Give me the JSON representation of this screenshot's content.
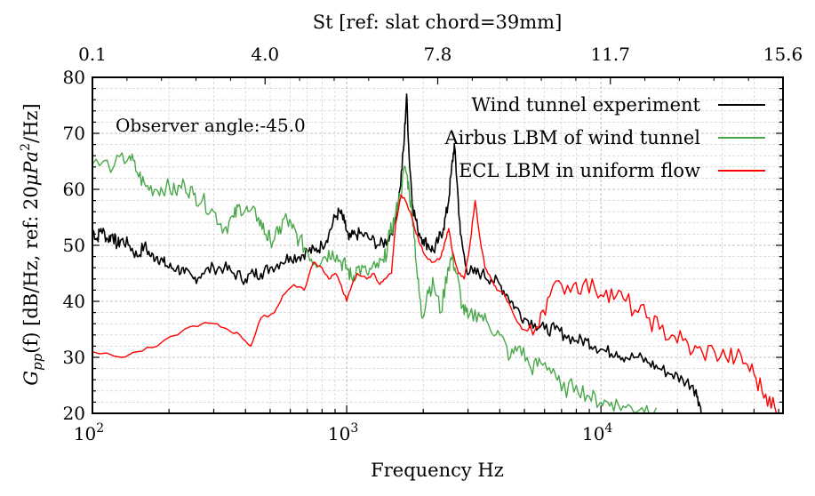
{
  "chart_data": {
    "type": "line",
    "xlabel": "Frequency Hz",
    "ylabel": "G_pp(f) [dB/Hz, ref: 20μPa²/Hz]",
    "ylabel_parts": {
      "g": "G",
      "sub": "pp",
      "fn": "(f) [dB/Hz, ref: 20",
      "mu": "μ",
      "pa": "Pa",
      "sup": "2",
      "end": "/Hz]"
    },
    "x_scale": "log",
    "xlim": [
      100,
      52000
    ],
    "ylim": [
      20,
      80
    ],
    "x_ticks": [
      {
        "value": 100,
        "base": "10",
        "exp": "2"
      },
      {
        "value": 1000,
        "base": "10",
        "exp": "3"
      },
      {
        "value": 10000,
        "base": "10",
        "exp": "4"
      }
    ],
    "y_ticks": [
      "20",
      "30",
      "40",
      "50",
      "60",
      "70",
      "80"
    ],
    "top_axis": {
      "label": "St [ref: slat chord=39mm]",
      "ticks": [
        "0.1",
        "4.0",
        "7.8",
        "11.7",
        "15.6"
      ]
    },
    "grid": true,
    "legend_position": "top-right",
    "annotation": "Observer angle:-45.0",
    "series": [
      {
        "name": "Wind tunnel experiment",
        "color": "#000000",
        "points": [
          [
            100,
            53
          ],
          [
            104,
            51
          ],
          [
            108,
            53
          ],
          [
            115,
            51
          ],
          [
            120,
            52
          ],
          [
            125,
            50
          ],
          [
            130,
            51
          ],
          [
            140,
            50
          ],
          [
            150,
            48
          ],
          [
            160,
            50
          ],
          [
            170,
            48
          ],
          [
            180,
            48
          ],
          [
            190,
            47
          ],
          [
            200,
            46
          ],
          [
            215,
            46
          ],
          [
            230,
            45
          ],
          [
            250,
            44
          ],
          [
            270,
            45
          ],
          [
            300,
            46
          ],
          [
            330,
            46
          ],
          [
            360,
            45
          ],
          [
            400,
            44
          ],
          [
            430,
            45
          ],
          [
            460,
            45
          ],
          [
            500,
            46
          ],
          [
            550,
            47
          ],
          [
            600,
            48
          ],
          [
            650,
            48
          ],
          [
            700,
            49
          ],
          [
            750,
            49
          ],
          [
            800,
            50
          ],
          [
            850,
            52
          ],
          [
            900,
            55
          ],
          [
            940,
            56
          ],
          [
            980,
            54
          ],
          [
            1020,
            51
          ],
          [
            1080,
            52
          ],
          [
            1150,
            52
          ],
          [
            1250,
            51
          ],
          [
            1350,
            50
          ],
          [
            1450,
            51
          ],
          [
            1550,
            54
          ],
          [
            1620,
            60
          ],
          [
            1680,
            68
          ],
          [
            1720,
            77
          ],
          [
            1760,
            66
          ],
          [
            1820,
            57
          ],
          [
            1900,
            53
          ],
          [
            2000,
            51
          ],
          [
            2100,
            50
          ],
          [
            2200,
            49
          ],
          [
            2300,
            51
          ],
          [
            2400,
            53
          ],
          [
            2500,
            57
          ],
          [
            2580,
            63
          ],
          [
            2650,
            68
          ],
          [
            2720,
            61
          ],
          [
            2800,
            52
          ],
          [
            2950,
            46
          ],
          [
            3150,
            45
          ],
          [
            3400,
            45
          ],
          [
            3700,
            44
          ],
          [
            4000,
            43
          ],
          [
            4300,
            41
          ],
          [
            4600,
            39
          ],
          [
            5000,
            37
          ],
          [
            5500,
            36
          ],
          [
            6000,
            35
          ],
          [
            6600,
            35
          ],
          [
            7200,
            34
          ],
          [
            8000,
            33
          ],
          [
            8800,
            33
          ],
          [
            9500,
            32
          ],
          [
            10500,
            31
          ],
          [
            11500,
            31
          ],
          [
            12500,
            30
          ],
          [
            14000,
            30
          ],
          [
            15500,
            29
          ],
          [
            17000,
            28
          ],
          [
            19000,
            27
          ],
          [
            21000,
            26
          ],
          [
            23000,
            25
          ],
          [
            24000,
            23
          ],
          [
            25000,
            20
          ]
        ]
      },
      {
        "name": "Airbus LBM of wind tunnel",
        "color": "#4aa84a",
        "points": [
          [
            100,
            64.5
          ],
          [
            122,
            64.3
          ],
          [
            140,
            66
          ],
          [
            150,
            63
          ],
          [
            162,
            60.5
          ],
          [
            178,
            60
          ],
          [
            195,
            60.5
          ],
          [
            212,
            59.5
          ],
          [
            230,
            61
          ],
          [
            250,
            59
          ],
          [
            270,
            58
          ],
          [
            300,
            56
          ],
          [
            330,
            53
          ],
          [
            360,
            55
          ],
          [
            380,
            57
          ],
          [
            410,
            56
          ],
          [
            450,
            55
          ],
          [
            480,
            52
          ],
          [
            500,
            51
          ],
          [
            540,
            52
          ],
          [
            570,
            55
          ],
          [
            610,
            53
          ],
          [
            650,
            51
          ],
          [
            700,
            49
          ],
          [
            750,
            47
          ],
          [
            820,
            48
          ],
          [
            880,
            49
          ],
          [
            950,
            47
          ],
          [
            1000,
            46
          ],
          [
            1050,
            44
          ],
          [
            1100,
            46
          ],
          [
            1200,
            45
          ],
          [
            1300,
            46
          ],
          [
            1400,
            47
          ],
          [
            1480,
            52
          ],
          [
            1550,
            55
          ],
          [
            1620,
            59
          ],
          [
            1700,
            64
          ],
          [
            1760,
            60
          ],
          [
            1830,
            54
          ],
          [
            1900,
            44
          ],
          [
            1980,
            37
          ],
          [
            2080,
            42
          ],
          [
            2200,
            43
          ],
          [
            2350,
            38
          ],
          [
            2500,
            46
          ],
          [
            2600,
            48
          ],
          [
            2700,
            45
          ],
          [
            2850,
            39
          ],
          [
            3000,
            37
          ],
          [
            3300,
            38
          ],
          [
            3600,
            36
          ],
          [
            4000,
            34
          ],
          [
            4400,
            30
          ],
          [
            4800,
            32
          ],
          [
            5300,
            28
          ],
          [
            5800,
            29
          ],
          [
            6500,
            28
          ],
          [
            7000,
            24
          ],
          [
            8000,
            25
          ],
          [
            9000,
            23
          ],
          [
            10000,
            22
          ],
          [
            11000,
            22
          ],
          [
            12500,
            21
          ],
          [
            14500,
            21
          ],
          [
            16500,
            21
          ]
        ]
      },
      {
        "name": "ECL LBM in uniform flow",
        "color": "#ff0000",
        "points": [
          [
            100,
            31
          ],
          [
            130,
            30
          ],
          [
            150,
            31
          ],
          [
            180,
            32
          ],
          [
            230,
            35
          ],
          [
            270,
            36
          ],
          [
            300,
            36
          ],
          [
            340,
            35
          ],
          [
            380,
            34
          ],
          [
            420,
            32
          ],
          [
            460,
            37
          ],
          [
            520,
            38
          ],
          [
            560,
            41
          ],
          [
            620,
            43
          ],
          [
            680,
            42
          ],
          [
            740,
            47
          ],
          [
            800,
            46
          ],
          [
            850,
            44
          ],
          [
            900,
            45
          ],
          [
            950,
            43
          ],
          [
            1000,
            40
          ],
          [
            1050,
            43
          ],
          [
            1100,
            45
          ],
          [
            1200,
            44
          ],
          [
            1280,
            45
          ],
          [
            1350,
            43
          ],
          [
            1420,
            44
          ],
          [
            1500,
            45
          ],
          [
            1560,
            54
          ],
          [
            1640,
            59
          ],
          [
            1700,
            58
          ],
          [
            1780,
            56
          ],
          [
            1850,
            53
          ],
          [
            1950,
            50
          ],
          [
            2050,
            48
          ],
          [
            2200,
            47
          ],
          [
            2350,
            48
          ],
          [
            2450,
            51
          ],
          [
            2520,
            53
          ],
          [
            2600,
            49
          ],
          [
            2750,
            45
          ],
          [
            2900,
            44
          ],
          [
            3050,
            50
          ],
          [
            3200,
            58
          ],
          [
            3350,
            51
          ],
          [
            3500,
            46
          ],
          [
            3700,
            44
          ],
          [
            3900,
            42
          ],
          [
            4200,
            41
          ],
          [
            4500,
            38
          ],
          [
            4900,
            35
          ],
          [
            5400,
            34
          ],
          [
            5800,
            38
          ],
          [
            6300,
            41
          ],
          [
            7000,
            43
          ],
          [
            7800,
            43
          ],
          [
            8500,
            43
          ],
          [
            9500,
            42
          ],
          [
            10500,
            42
          ],
          [
            11500,
            41
          ],
          [
            12500,
            40
          ],
          [
            14000,
            38
          ],
          [
            15500,
            37
          ],
          [
            17000,
            35
          ],
          [
            19000,
            34
          ],
          [
            21000,
            33
          ],
          [
            23000,
            31
          ],
          [
            25000,
            31
          ],
          [
            28000,
            31
          ],
          [
            31000,
            30
          ],
          [
            34000,
            30
          ],
          [
            37000,
            29
          ],
          [
            40000,
            27
          ],
          [
            43000,
            24
          ],
          [
            46000,
            23
          ],
          [
            49000,
            20
          ]
        ]
      }
    ]
  }
}
